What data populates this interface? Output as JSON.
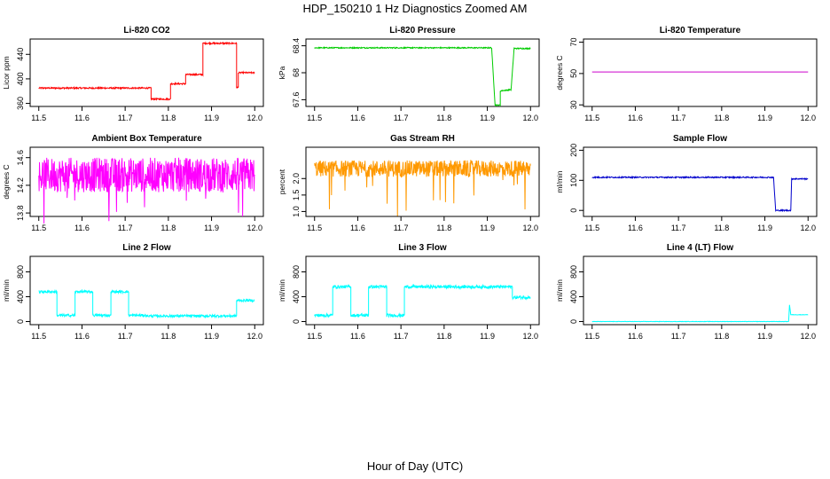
{
  "figure": {
    "title": "HDP_150210  1 Hz Diagnostics Zoomed AM",
    "xlabel": "Hour of Day (UTC)"
  },
  "chart_data": [
    {
      "type": "line",
      "title": "Li-820 CO2",
      "ylabel": "Licor ppm",
      "xlim": [
        11.48,
        12.02
      ],
      "xticks": [
        11.5,
        11.6,
        11.7,
        11.8,
        11.9,
        12.0
      ],
      "ylim": [
        355,
        465
      ],
      "yticks": [
        360,
        400,
        440
      ],
      "color": "#ff0000",
      "points": [
        [
          11.5,
          385
        ],
        [
          11.76,
          385
        ],
        [
          11.76,
          367
        ],
        [
          11.805,
          367
        ],
        [
          11.805,
          392
        ],
        [
          11.84,
          392
        ],
        [
          11.84,
          407
        ],
        [
          11.88,
          407
        ],
        [
          11.88,
          458
        ],
        [
          11.958,
          458
        ],
        [
          11.958,
          386
        ],
        [
          11.962,
          386
        ],
        [
          11.962,
          410
        ],
        [
          12.0,
          410
        ]
      ],
      "noise": 1.2
    },
    {
      "type": "line",
      "title": "Li-820 Pressure",
      "ylabel": "kPa",
      "xlim": [
        11.48,
        12.02
      ],
      "xticks": [
        11.5,
        11.6,
        11.7,
        11.8,
        11.9,
        12.0
      ],
      "ylim": [
        67.5,
        68.5
      ],
      "yticks": [
        67.6,
        68.0,
        68.4
      ],
      "color": "#00cc00",
      "points": [
        [
          11.5,
          68.37
        ],
        [
          11.91,
          68.37
        ],
        [
          11.918,
          67.52
        ],
        [
          11.93,
          67.52
        ],
        [
          11.93,
          67.73
        ],
        [
          11.955,
          67.75
        ],
        [
          11.962,
          68.36
        ],
        [
          12.0,
          68.36
        ]
      ],
      "noise": 0.008
    },
    {
      "type": "line",
      "title": "Li-820 Temperature",
      "ylabel": "degrees C",
      "xlim": [
        11.48,
        12.02
      ],
      "xticks": [
        11.5,
        11.6,
        11.7,
        11.8,
        11.9,
        12.0
      ],
      "ylim": [
        29,
        72
      ],
      "yticks": [
        30,
        50,
        70
      ],
      "color": "#cc00cc",
      "points": [
        [
          11.5,
          51
        ],
        [
          12.0,
          51
        ]
      ],
      "noise": 0
    },
    {
      "type": "line",
      "title": "Ambient Box Temperature",
      "ylabel": "degrees C",
      "xlim": [
        11.48,
        12.02
      ],
      "xticks": [
        11.5,
        11.6,
        11.7,
        11.8,
        11.9,
        12.0
      ],
      "ylim": [
        13.75,
        14.75
      ],
      "yticks": [
        13.8,
        14.2,
        14.6
      ],
      "color": "#ff00ff",
      "band": [
        14.1,
        14.6
      ],
      "points": [
        [
          11.5,
          14.35
        ],
        [
          12.0,
          14.35
        ]
      ],
      "noise": 0.25
    },
    {
      "type": "line",
      "title": "Gas Stream RH",
      "ylabel": "percent",
      "xlim": [
        11.48,
        12.02
      ],
      "xticks": [
        11.5,
        11.6,
        11.7,
        11.8,
        11.9,
        12.0
      ],
      "ylim": [
        0.85,
        2.95
      ],
      "yticks": [
        1.0,
        1.5,
        2.0
      ],
      "color": "#ff9900",
      "band": [
        2.05,
        2.55
      ],
      "points": [
        [
          11.5,
          2.3
        ],
        [
          12.0,
          2.3
        ]
      ],
      "noise": 0.2
    },
    {
      "type": "line",
      "title": "Sample Flow",
      "ylabel": "ml/min",
      "xlim": [
        11.48,
        12.02
      ],
      "xticks": [
        11.5,
        11.6,
        11.7,
        11.8,
        11.9,
        12.0
      ],
      "ylim": [
        -20,
        210
      ],
      "yticks": [
        0,
        100,
        200
      ],
      "color": "#0000cc",
      "points": [
        [
          11.5,
          110
        ],
        [
          11.92,
          110
        ],
        [
          11.925,
          0
        ],
        [
          11.96,
          0
        ],
        [
          11.962,
          105
        ],
        [
          12.0,
          105
        ]
      ],
      "noise": 2
    },
    {
      "type": "line",
      "title": "Line 2 Flow",
      "ylabel": "ml/min",
      "xlim": [
        11.48,
        12.02
      ],
      "xticks": [
        11.5,
        11.6,
        11.7,
        11.8,
        11.9,
        12.0
      ],
      "ylim": [
        -50,
        1050
      ],
      "yticks": [
        0,
        400,
        800
      ],
      "color": "#00ffff",
      "points": [
        [
          11.5,
          480
        ],
        [
          11.542,
          480
        ],
        [
          11.542,
          100
        ],
        [
          11.584,
          100
        ],
        [
          11.584,
          480
        ],
        [
          11.625,
          480
        ],
        [
          11.625,
          100
        ],
        [
          11.667,
          100
        ],
        [
          11.667,
          480
        ],
        [
          11.708,
          480
        ],
        [
          11.708,
          100
        ],
        [
          11.75,
          100
        ],
        [
          11.75,
          90
        ],
        [
          11.958,
          90
        ],
        [
          11.958,
          340
        ],
        [
          12.0,
          340
        ]
      ],
      "noise": 20
    },
    {
      "type": "line",
      "title": "Line 3 Flow",
      "ylabel": "ml/min",
      "xlim": [
        11.48,
        12.02
      ],
      "xticks": [
        11.5,
        11.6,
        11.7,
        11.8,
        11.9,
        12.0
      ],
      "ylim": [
        -50,
        1050
      ],
      "yticks": [
        0,
        400,
        800
      ],
      "color": "#00ffff",
      "points": [
        [
          11.5,
          100
        ],
        [
          11.542,
          100
        ],
        [
          11.542,
          560
        ],
        [
          11.584,
          560
        ],
        [
          11.584,
          100
        ],
        [
          11.625,
          100
        ],
        [
          11.625,
          560
        ],
        [
          11.667,
          560
        ],
        [
          11.667,
          100
        ],
        [
          11.708,
          100
        ],
        [
          11.708,
          560
        ],
        [
          11.958,
          560
        ],
        [
          11.958,
          390
        ],
        [
          12.0,
          390
        ]
      ],
      "noise": 25
    },
    {
      "type": "line",
      "title": "Line 4 (LT) Flow",
      "ylabel": "ml/min",
      "xlim": [
        11.48,
        12.02
      ],
      "xticks": [
        11.5,
        11.6,
        11.7,
        11.8,
        11.9,
        12.0
      ],
      "ylim": [
        -50,
        1050
      ],
      "yticks": [
        0,
        400,
        800
      ],
      "color": "#00ffff",
      "points": [
        [
          11.5,
          0
        ],
        [
          11.955,
          0
        ],
        [
          11.957,
          270
        ],
        [
          11.96,
          110
        ],
        [
          12.0,
          110
        ]
      ],
      "noise": 3
    }
  ]
}
